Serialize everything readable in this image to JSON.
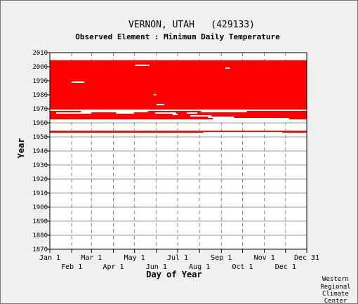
{
  "chart_data": {
    "type": "heatmap",
    "title": "VERNON, UTAH   (429133)",
    "subtitle": "Observed Element : Minimum Daily Temperature",
    "xlabel": "Day of Year",
    "ylabel": "Year",
    "ylim": [
      1870,
      2010
    ],
    "xlim": [
      1,
      365
    ],
    "grid": true,
    "series_color": "#ff0000",
    "x_ticks_upper": [
      {
        "label": "Jan 1",
        "day": 1
      },
      {
        "label": "Mar 1",
        "day": 60
      },
      {
        "label": "May 1",
        "day": 121
      },
      {
        "label": "Jul 1",
        "day": 182
      },
      {
        "label": "Sep 1",
        "day": 244
      },
      {
        "label": "Nov 1",
        "day": 305
      },
      {
        "label": "Dec 31",
        "day": 365
      }
    ],
    "x_ticks_lower": [
      {
        "label": "Feb 1",
        "day": 32
      },
      {
        "label": "Apr 1",
        "day": 91
      },
      {
        "label": "Jun 1",
        "day": 152
      },
      {
        "label": "Aug 1",
        "day": 213
      },
      {
        "label": "Oct 1",
        "day": 274
      },
      {
        "label": "Dec 1",
        "day": 335
      }
    ],
    "y_ticks": [
      1870,
      1880,
      1890,
      1900,
      1910,
      1920,
      1930,
      1940,
      1950,
      1960,
      1970,
      1980,
      1990,
      2000,
      2010
    ],
    "observed_periods": [
      {
        "year_start": 1953.0,
        "year_end": 1954.4,
        "day_start": 1,
        "day_end": 365
      },
      {
        "year_start": 1962.5,
        "year_end": 2004.6,
        "day_start": 1,
        "day_end": 365
      }
    ],
    "missing_segments": [
      {
        "year": 1989,
        "day_start": 32,
        "day_end": 50
      },
      {
        "year": 2001,
        "day_start": 122,
        "day_end": 142
      },
      {
        "year": 1999,
        "day_start": 250,
        "day_end": 256
      },
      {
        "year": 1980,
        "day_start": 148,
        "day_end": 152
      },
      {
        "year": 1973,
        "day_start": 152,
        "day_end": 163
      },
      {
        "year": 1969,
        "day_start": 1,
        "day_end": 365
      },
      {
        "year": 1968,
        "day_start": 45,
        "day_end": 140
      },
      {
        "year": 1968,
        "day_start": 215,
        "day_end": 280
      },
      {
        "year": 1967,
        "day_start": 10,
        "day_end": 60
      },
      {
        "year": 1967,
        "day_start": 95,
        "day_end": 120
      },
      {
        "year": 1967,
        "day_start": 150,
        "day_end": 180
      },
      {
        "year": 1967,
        "day_start": 195,
        "day_end": 210
      },
      {
        "year": 1966,
        "day_start": 175,
        "day_end": 182
      },
      {
        "year": 1965,
        "day_start": 200,
        "day_end": 230
      },
      {
        "year": 1964,
        "day_start": 225,
        "day_end": 262
      },
      {
        "year": 1963,
        "day_start": 232,
        "day_end": 340
      },
      {
        "year": 1953,
        "day_start": 219,
        "day_end": 330
      }
    ]
  },
  "credit": [
    "Western",
    "Regional",
    "Climate",
    "Center"
  ]
}
